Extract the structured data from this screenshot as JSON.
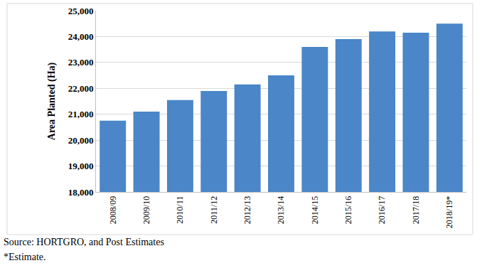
{
  "chart_data": {
    "type": "bar",
    "y_label": "Area Planted (Ha)",
    "categories": [
      "2008/09",
      "2009/10",
      "2010/11",
      "2011/12",
      "2012/13",
      "2013/14",
      "2014/15",
      "2015/16",
      "2016/17",
      "2017/18",
      "2018/19*"
    ],
    "values": [
      20750,
      21100,
      21550,
      21900,
      22150,
      22500,
      23600,
      23900,
      24200,
      24150,
      24500
    ],
    "color": "#4a86c8",
    "ylim": [
      18000,
      25000
    ],
    "yticks": [
      {
        "value": 18000,
        "label": "18,000"
      },
      {
        "value": 19000,
        "label": "19,000"
      },
      {
        "value": 20000,
        "label": "20,000"
      },
      {
        "value": 21000,
        "label": "21,000"
      },
      {
        "value": 22000,
        "label": "22,000"
      },
      {
        "value": 23000,
        "label": "23,000"
      },
      {
        "value": 24000,
        "label": "24,000"
      },
      {
        "value": 25000,
        "label": "25,000"
      }
    ],
    "grid": true,
    "annotations": [
      "Source: HORTGRO, and Post Estimates",
      "*Estimate."
    ]
  }
}
